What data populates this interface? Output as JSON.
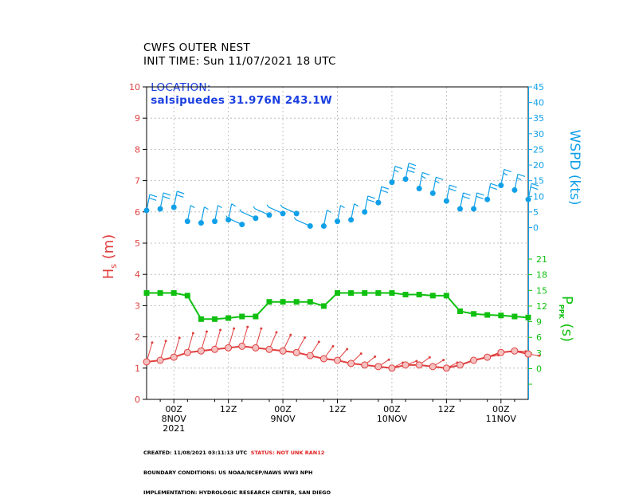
{
  "header": {
    "title": "CWFS OUTER NEST",
    "init_time": "INIT TIME: Sun 11/07/2021 18 UTC",
    "location_label": "LOCATION:",
    "location_value": "salsipuedes 31.976N 243.1W"
  },
  "footer": {
    "created_label": "CREATED: 11/08/2021 03:11:13 UTC",
    "status": "STATUS: NOT UNK RAN12",
    "boundary": "BOUNDARY CONDITIONS: US NOAA/NCEP/NAWS WW3 NPH",
    "implementation": "IMPLEMENTATION: HYDROLOGIC RESEARCH CENTER, SAN DIEGO"
  },
  "colors": {
    "hs": "#e04040",
    "hs_marker_fill": "#f4c0c0",
    "wspd": "#10a0e8",
    "ppk": "#10c010",
    "grid": "#b0b0b0"
  },
  "chart_data": {
    "type": "line",
    "x_unit": "hours since 2021-11-07 18 UTC",
    "xlim": [
      0,
      84
    ],
    "x_tick_labels": [
      {
        "x": 6,
        "lines": [
          "00Z",
          "8NOV",
          "2021"
        ]
      },
      {
        "x": 18,
        "lines": [
          "12Z"
        ]
      },
      {
        "x": 30,
        "lines": [
          "00Z",
          "9NOV"
        ]
      },
      {
        "x": 42,
        "lines": [
          "12Z"
        ]
      },
      {
        "x": 54,
        "lines": [
          "00Z",
          "10NOV"
        ]
      },
      {
        "x": 66,
        "lines": [
          "12Z"
        ]
      },
      {
        "x": 78,
        "lines": [
          "00Z",
          "11NOV"
        ]
      }
    ],
    "left_axis": {
      "label_main": "H",
      "label_sub": "s",
      "label_unit": "(m)",
      "ylim": [
        0,
        10
      ],
      "ticks": [
        "0",
        "1",
        "2",
        "3",
        "4",
        "5",
        "6",
        "7",
        "8",
        "9",
        "10"
      ]
    },
    "right_axis_wspd": {
      "label": "WSPD (kts)",
      "ylim": [
        0,
        45
      ],
      "ticks": [
        "0",
        "5",
        "10",
        "15",
        "20",
        "25",
        "30",
        "35",
        "40",
        "45"
      ]
    },
    "right_axis_ppk": {
      "label_main": "P",
      "label_sub": "PPK",
      "label_unit": "(s)",
      "ticks": [
        "0",
        "3",
        "6",
        "9",
        "12",
        "15",
        "18",
        "21"
      ]
    },
    "series": [
      {
        "name": "Hs",
        "axis": "left",
        "x": [
          0,
          3,
          6,
          9,
          12,
          15,
          18,
          21,
          24,
          27,
          30,
          33,
          36,
          39,
          42,
          45,
          48,
          51,
          54,
          57,
          60,
          63,
          66,
          69,
          72,
          75,
          78,
          81,
          84
        ],
        "values": [
          1.2,
          1.25,
          1.35,
          1.5,
          1.55,
          1.6,
          1.65,
          1.7,
          1.65,
          1.6,
          1.55,
          1.5,
          1.4,
          1.3,
          1.25,
          1.15,
          1.1,
          1.05,
          1.0,
          1.1,
          1.1,
          1.05,
          1.0,
          1.1,
          1.25,
          1.35,
          1.5,
          1.55,
          1.45
        ]
      },
      {
        "name": "WSPD",
        "axis": "right_wspd",
        "x": [
          0,
          3,
          6,
          9,
          12,
          15,
          18,
          21,
          24,
          27,
          30,
          33,
          36,
          39,
          42,
          45,
          48,
          51,
          54,
          57,
          60,
          63,
          66,
          69,
          72,
          75,
          78,
          81,
          84
        ],
        "values": [
          5.5,
          6,
          6.5,
          2,
          1.5,
          2,
          2.5,
          1,
          3,
          4,
          4.5,
          4.5,
          0.5,
          0.5,
          2,
          2.5,
          5,
          8,
          14.5,
          15.5,
          12.5,
          11,
          8.5,
          6,
          6,
          9,
          13.5,
          12,
          9
        ]
      },
      {
        "name": "PPK",
        "axis": "right_ppk",
        "x": [
          0,
          3,
          6,
          9,
          12,
          15,
          18,
          21,
          24,
          27,
          30,
          33,
          36,
          39,
          42,
          45,
          48,
          51,
          54,
          57,
          60,
          63,
          66,
          69,
          72,
          75,
          78,
          81,
          84
        ],
        "values": [
          14.5,
          14.5,
          14.5,
          14,
          9.5,
          9.5,
          9.7,
          10,
          10,
          12.8,
          12.8,
          12.8,
          12.8,
          12,
          14.5,
          14.5,
          14.5,
          14.5,
          14.5,
          14.2,
          14.2,
          14,
          14,
          11,
          10.5,
          10.3,
          10.2,
          10,
          9.8
        ]
      }
    ],
    "grid": true
  }
}
